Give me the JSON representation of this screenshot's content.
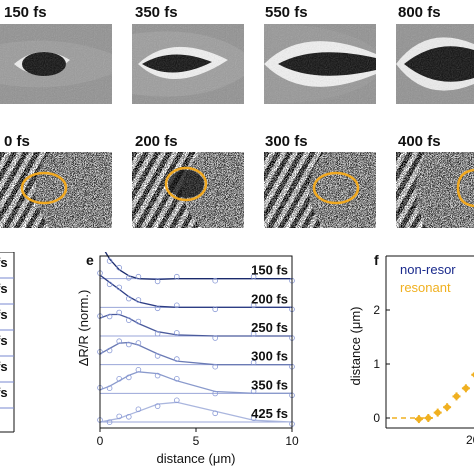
{
  "top_row_labels": [
    "150 fs",
    "350 fs",
    "550 fs",
    "800 fs"
  ],
  "middle_row_labels": [
    "0 fs",
    "200 fs",
    "300 fs",
    "400 fs"
  ],
  "panel_d": {
    "letter": "",
    "bar_labels": [
      "fs",
      "fs",
      "fs",
      "fs",
      "fs",
      "fs"
    ]
  },
  "panel_e": {
    "letter": "e"
  },
  "panel_f": {
    "letter": "f"
  },
  "colors": {
    "ellipse": "#f0a820",
    "fit_dark": "#1a2a6c",
    "points": "#8a9ad6",
    "nonresonant_text": "#1a2a8c",
    "resonant_text": "#f0b020"
  },
  "chart_data": [
    {
      "panel": "e",
      "type": "line",
      "title": "",
      "xlabel": "distance (μm)",
      "ylabel": "ΔR/R (norm.)",
      "xlim": [
        0,
        10
      ],
      "xticks": [
        "0",
        "5",
        "10"
      ],
      "series": [
        {
          "name": "150 fs",
          "x": [
            0,
            0.5,
            1,
            1.5,
            2,
            3,
            4,
            6,
            8,
            10
          ],
          "y": [
            1.0,
            0.55,
            0.25,
            0.08,
            0.0,
            -0.02,
            0.0,
            0.0,
            0.0,
            0.0
          ]
        },
        {
          "name": "200 fs",
          "x": [
            0,
            0.5,
            1,
            1.5,
            2,
            3,
            4,
            6,
            8,
            10
          ],
          "y": [
            0.9,
            0.7,
            0.5,
            0.3,
            0.15,
            0.03,
            0.0,
            0.0,
            0.0,
            0.0
          ]
        },
        {
          "name": "250 fs",
          "x": [
            0,
            0.5,
            1,
            1.5,
            2,
            3,
            4,
            6,
            8,
            10
          ],
          "y": [
            0.5,
            0.6,
            0.6,
            0.5,
            0.35,
            0.12,
            0.03,
            0.0,
            0.0,
            0.0
          ]
        },
        {
          "name": "300 fs",
          "x": [
            0,
            0.5,
            1,
            1.5,
            2,
            3,
            4,
            6,
            8,
            10
          ],
          "y": [
            0.3,
            0.45,
            0.6,
            0.62,
            0.55,
            0.3,
            0.1,
            0.0,
            0.0,
            0.0
          ]
        },
        {
          "name": "350 fs",
          "x": [
            0,
            0.5,
            1,
            1.5,
            2,
            3,
            4,
            6,
            8,
            10
          ],
          "y": [
            0.1,
            0.2,
            0.35,
            0.5,
            0.6,
            0.55,
            0.35,
            0.05,
            0.0,
            0.0
          ]
        },
        {
          "name": "425 fs",
          "x": [
            0,
            0.5,
            1,
            1.5,
            2,
            3,
            4,
            6,
            8,
            10
          ],
          "y": [
            0.0,
            0.05,
            0.1,
            0.2,
            0.3,
            0.5,
            0.55,
            0.3,
            0.05,
            0.0
          ]
        }
      ]
    },
    {
      "panel": "f",
      "type": "scatter",
      "title": "",
      "xlabel": "",
      "ylabel": "distance (μm)",
      "yticks": [
        "0",
        "1",
        "2"
      ],
      "xticks": [
        "20"
      ],
      "legend": [
        "non-resor",
        "resonant"
      ],
      "series": [
        {
          "name": "resonant",
          "x": [
            0.35,
            0.45,
            0.55,
            0.65,
            0.75,
            0.85,
            0.95
          ],
          "y": [
            -0.02,
            0.0,
            0.1,
            0.2,
            0.4,
            0.55,
            0.8
          ]
        }
      ]
    }
  ]
}
